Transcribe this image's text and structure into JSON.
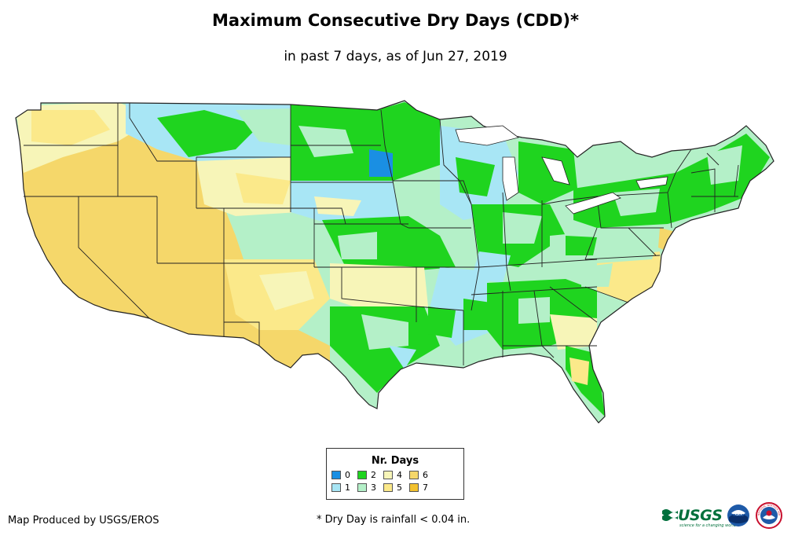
{
  "header": {
    "title": "Maximum Consecutive Dry Days (CDD)*",
    "subtitle": "in past 7 days, as of Jun 27, 2019"
  },
  "legend": {
    "title": "Nr. Days",
    "items": [
      {
        "label": "0",
        "color": "#1a8fe3"
      },
      {
        "label": "1",
        "color": "#a8e6f5"
      },
      {
        "label": "2",
        "color": "#1fd41f"
      },
      {
        "label": "3",
        "color": "#b4f0c8"
      },
      {
        "label": "4",
        "color": "#f7f5b8"
      },
      {
        "label": "5",
        "color": "#fbe98a"
      },
      {
        "label": "6",
        "color": "#f5d76a"
      },
      {
        "label": "7",
        "color": "#f2c12e"
      }
    ]
  },
  "footer": {
    "credit": "Map Produced by USGS/EROS",
    "note": "* Dry Day is rainfall < 0.04 in."
  },
  "logos": {
    "usgs": "USGS",
    "usgs_tagline": "science for a changing world",
    "noaa": "noaa",
    "nws": "NATIONAL WEATHER SERVICE"
  },
  "colors": {
    "border": "#222222",
    "background": "#ffffff"
  }
}
